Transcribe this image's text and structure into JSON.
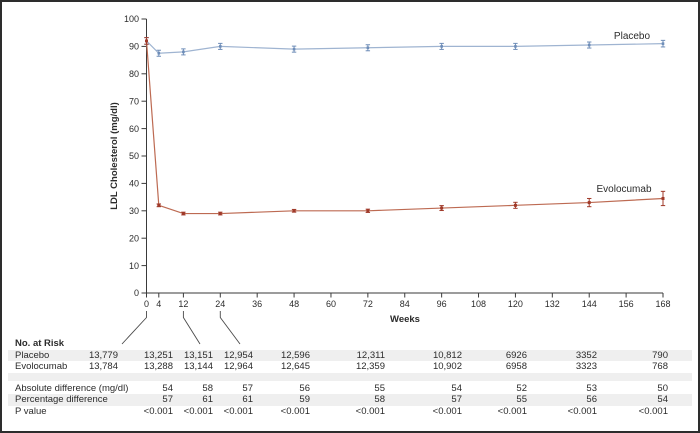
{
  "chart_data": {
    "type": "line",
    "title": "",
    "xlabel": "Weeks",
    "ylabel": "LDL Cholesterol (mg/dl)",
    "xlim": [
      0,
      168
    ],
    "ylim": [
      0,
      100
    ],
    "grid": false,
    "legend_position": "inline-right-of-lines",
    "x_ticks": [
      0,
      4,
      12,
      24,
      36,
      48,
      60,
      72,
      84,
      96,
      108,
      120,
      132,
      144,
      156,
      168
    ],
    "y_ticks": [
      0,
      10,
      20,
      30,
      40,
      50,
      60,
      70,
      80,
      90,
      100
    ],
    "x": [
      0,
      4,
      12,
      24,
      48,
      72,
      96,
      120,
      144,
      168
    ],
    "series": [
      {
        "name": "Placebo",
        "line_color": "#9fb4d1",
        "marker_color": "#6e8db8",
        "values": [
          92,
          87.5,
          88,
          90,
          89,
          89.5,
          90,
          90,
          90.5,
          91
        ],
        "err": [
          1.2,
          1.1,
          1.1,
          1.1,
          1.1,
          1.1,
          1.1,
          1.1,
          1.1,
          1.2
        ]
      },
      {
        "name": "Evolocumab",
        "line_color": "#bd6a52",
        "marker_color": "#a03a2a",
        "values": [
          92,
          32,
          29,
          29,
          30,
          30,
          31,
          32,
          33,
          34.5
        ],
        "err": [
          1.2,
          0.5,
          0.5,
          0.5,
          0.5,
          0.6,
          0.9,
          1.1,
          1.5,
          2.6
        ]
      }
    ]
  },
  "risk_table": {
    "header": "No. at Risk",
    "columns_weeks": [
      0,
      4,
      12,
      24,
      48,
      72,
      96,
      120,
      144,
      168
    ],
    "callout_ticks": [
      0,
      12,
      24
    ],
    "stripe_color": "#efefef",
    "rows": [
      {
        "label": "Placebo",
        "values": [
          "13,779",
          "13,251",
          "13,151",
          "12,954",
          "12,596",
          "12,311",
          "10,812",
          "6926",
          "3352",
          "790"
        ]
      },
      {
        "label": "Evolocumab",
        "values": [
          "13,784",
          "13,288",
          "13,144",
          "12,964",
          "12,645",
          "12,359",
          "10,902",
          "6958",
          "3323",
          "768"
        ]
      }
    ],
    "stats_rows": [
      {
        "label": "Absolute difference (mg/dl)",
        "values": [
          "",
          "54",
          "58",
          "57",
          "56",
          "55",
          "54",
          "52",
          "53",
          "50"
        ]
      },
      {
        "label": "Percentage difference",
        "values": [
          "",
          "57",
          "61",
          "61",
          "59",
          "58",
          "57",
          "55",
          "56",
          "54"
        ]
      },
      {
        "label": "P value",
        "values": [
          "",
          "<0.001",
          "<0.001",
          "<0.001",
          "<0.001",
          "<0.001",
          "<0.001",
          "<0.001",
          "<0.001",
          "<0.001"
        ]
      }
    ]
  }
}
